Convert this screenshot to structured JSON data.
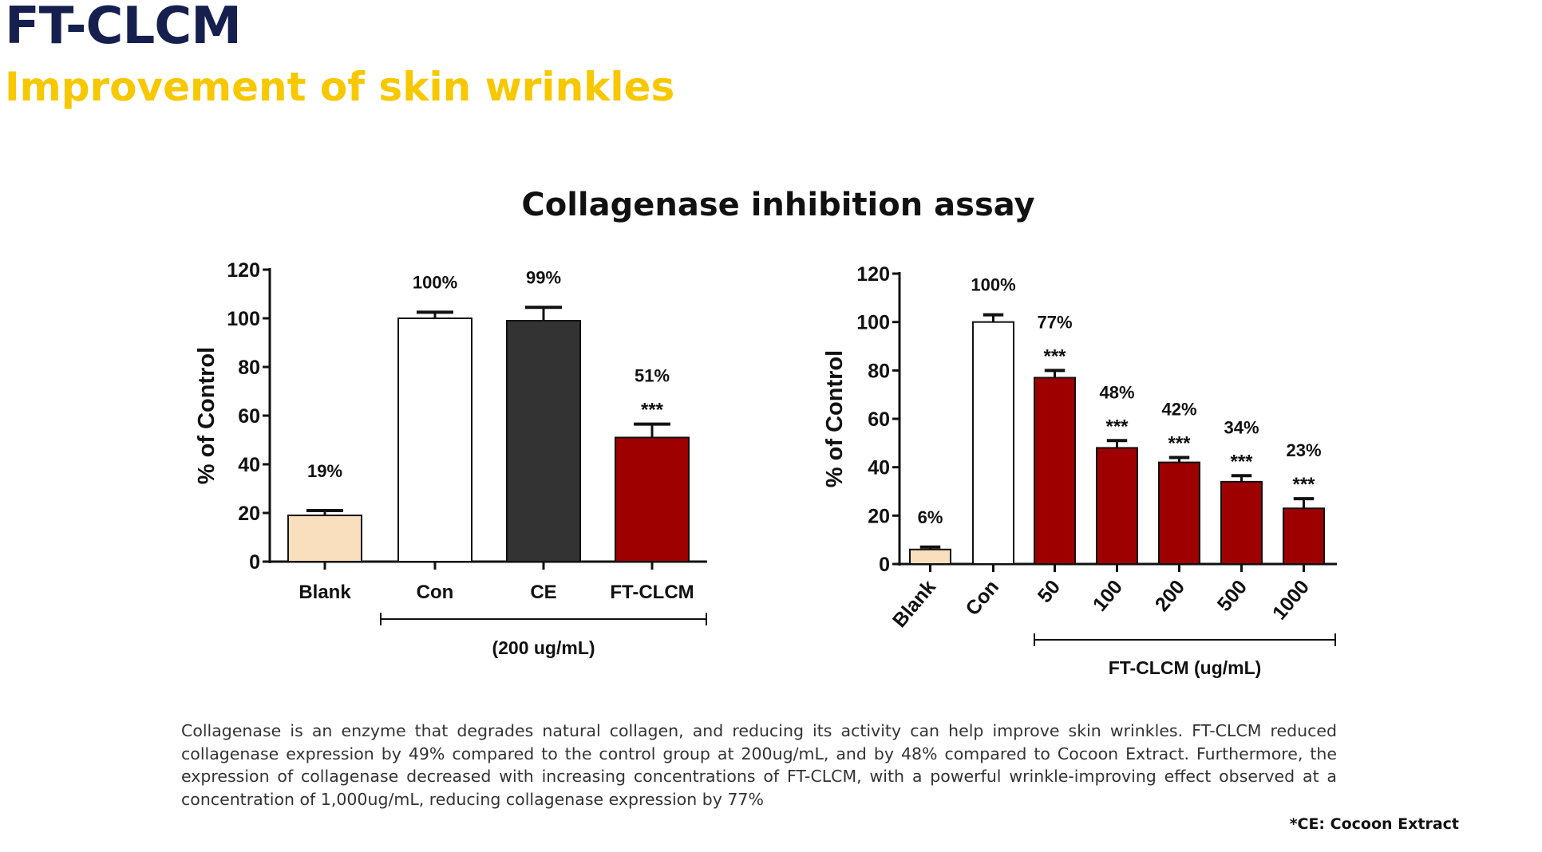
{
  "header": {
    "title": "FT-CLCM",
    "subtitle": "Improvement of skin wrinkles"
  },
  "figure_title": "Collagenase inhibition assay",
  "description": "Collagenase is an enzyme that degrades natural collagen, and reducing its activity can help improve skin wrinkles. FT-CLCM reduced collagenase expression by 49% compared to the control group at 200ug/mL, and by 48% compared to Cocoon Extract. Furthermore, the expression of collagenase decreased with increasing concentrations of FT-CLCM, with a powerful wrinkle-improving effect observed at a concentration of 1,000ug/mL, reducing collagenase expression by 77%",
  "footnote": "*CE: Cocoon Extract",
  "chart_data": [
    {
      "type": "bar",
      "ylabel": "% of Control",
      "ylim": [
        0,
        120
      ],
      "yticks": [
        "0",
        "20",
        "40",
        "60",
        "80",
        "100",
        "120"
      ],
      "categories": [
        "Blank",
        "Con",
        "CE",
        "FT-CLCM"
      ],
      "values": [
        19,
        100,
        99,
        51
      ],
      "errors": [
        2,
        2.5,
        5.5,
        5.5
      ],
      "labels": [
        "19%",
        "100%",
        "99%",
        "51%"
      ],
      "significance": [
        "",
        "",
        "",
        "***"
      ],
      "colors": [
        "#f9dfbd",
        "#ffffff",
        "#333333",
        "#9e0000"
      ],
      "group_label": "(200 ug/mL)",
      "grid": false
    },
    {
      "type": "bar",
      "ylabel": "% of Control",
      "ylim": [
        0,
        120
      ],
      "yticks": [
        "0",
        "20",
        "40",
        "60",
        "80",
        "100",
        "120"
      ],
      "categories": [
        "Blank",
        "Con",
        "50",
        "100",
        "200",
        "500",
        "1000"
      ],
      "values": [
        6,
        100,
        77,
        48,
        42,
        34,
        23
      ],
      "errors": [
        1,
        3,
        3,
        3,
        2,
        2.5,
        4
      ],
      "labels": [
        "6%",
        "100%",
        "77%",
        "48%",
        "42%",
        "34%",
        "23%"
      ],
      "significance": [
        "",
        "",
        "***",
        "***",
        "***",
        "***",
        "***"
      ],
      "colors": [
        "#f9dfbd",
        "#ffffff",
        "#9e0000",
        "#9e0000",
        "#9e0000",
        "#9e0000",
        "#9e0000"
      ],
      "group_label": "FT-CLCM (ug/mL)",
      "grid": false
    }
  ]
}
